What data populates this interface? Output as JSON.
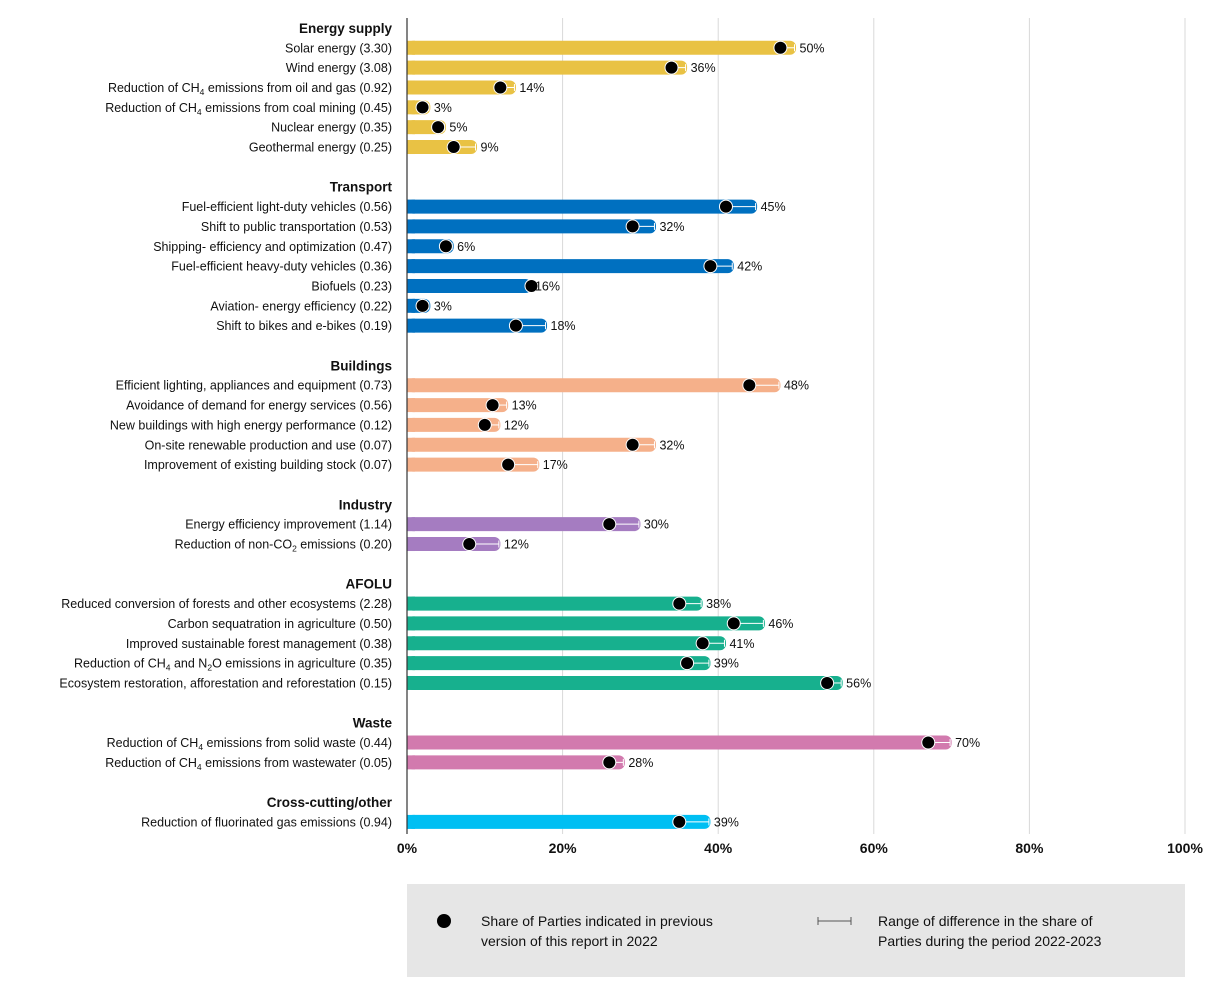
{
  "chart_data": {
    "type": "bar",
    "orientation": "horizontal",
    "xlim": [
      0,
      100
    ],
    "x_ticks": [
      "0%",
      "20%",
      "40%",
      "60%",
      "80%",
      "100%"
    ],
    "grid": true,
    "legend_placement": "bottom",
    "groups": [
      {
        "name": "Energy supply",
        "color": "#E9C244",
        "items": [
          {
            "label": "Solar energy (3.30)",
            "value": 50,
            "prev": 48,
            "value_label": "50%"
          },
          {
            "label": "Wind energy (3.08)",
            "value": 36,
            "prev": 34,
            "value_label": "36%"
          },
          {
            "label": "Reduction of CH₄ emissions from oil and gas (0.92)",
            "value": 14,
            "prev": 12,
            "value_label": "14%"
          },
          {
            "label": "Reduction of CH₄ emissions from coal mining (0.45)",
            "value": 3,
            "prev": 2,
            "value_label": "3%"
          },
          {
            "label": "Nuclear energy (0.35)",
            "value": 5,
            "prev": 4,
            "value_label": "5%"
          },
          {
            "label": "Geothermal energy (0.25)",
            "value": 9,
            "prev": 6,
            "value_label": "9%"
          }
        ]
      },
      {
        "name": "Transport",
        "color": "#0070C0",
        "items": [
          {
            "label": "Fuel-efficient light-duty vehicles (0.56)",
            "value": 45,
            "prev": 41,
            "value_label": "45%"
          },
          {
            "label": "Shift to public transportation (0.53)",
            "value": 32,
            "prev": 29,
            "value_label": "32%"
          },
          {
            "label": "Shipping- efficiency and optimization (0.47)",
            "value": 6,
            "prev": 5,
            "value_label": "6%"
          },
          {
            "label": "Fuel-efficient heavy-duty vehicles (0.36)",
            "value": 42,
            "prev": 39,
            "value_label": "42%"
          },
          {
            "label": "Biofuels (0.23)",
            "value": 16,
            "prev": 16,
            "value_label": "16%"
          },
          {
            "label": "Aviation- energy efficiency (0.22)",
            "value": 3,
            "prev": 2,
            "value_label": "3%"
          },
          {
            "label": "Shift to bikes and e-bikes (0.19)",
            "value": 18,
            "prev": 14,
            "value_label": "18%"
          }
        ]
      },
      {
        "name": "Buildings",
        "color": "#F5B08A",
        "items": [
          {
            "label": "Efficient lighting, appliances and equipment (0.73)",
            "value": 48,
            "prev": 44,
            "value_label": "48%"
          },
          {
            "label": "Avoidance of demand for energy services (0.56)",
            "value": 13,
            "prev": 11,
            "value_label": "13%"
          },
          {
            "label": "New buildings with high energy performance (0.12)",
            "value": 12,
            "prev": 10,
            "value_label": "12%"
          },
          {
            "label": "On-site renewable production and use (0.07)",
            "value": 32,
            "prev": 29,
            "value_label": "32%"
          },
          {
            "label": "Improvement of existing building stock (0.07)",
            "value": 17,
            "prev": 13,
            "value_label": "17%"
          }
        ]
      },
      {
        "name": "Industry",
        "color": "#A57CC1",
        "items": [
          {
            "label": "Energy efficiency improvement (1.14)",
            "value": 30,
            "prev": 26,
            "value_label": "30%"
          },
          {
            "label": "Reduction of non-CO₂ emissions (0.20)",
            "value": 12,
            "prev": 8,
            "value_label": "12%"
          }
        ]
      },
      {
        "name": "AFOLU",
        "color": "#17B08E",
        "items": [
          {
            "label": "Reduced conversion of forests and other ecosystems (2.28)",
            "value": 38,
            "prev": 35,
            "value_label": "38%"
          },
          {
            "label": "Carbon sequatration in agriculture (0.50)",
            "value": 46,
            "prev": 42,
            "value_label": "46%"
          },
          {
            "label": "Improved sustainable forest management (0.38)",
            "value": 41,
            "prev": 38,
            "value_label": "41%"
          },
          {
            "label": "Reduction of CH₄ and N₂O emissions in agriculture (0.35)",
            "value": 39,
            "prev": 36,
            "value_label": "39%"
          },
          {
            "label": "Ecosystem restoration, afforestation and reforestation (0.15)",
            "value": 56,
            "prev": 54,
            "value_label": "56%"
          }
        ]
      },
      {
        "name": "Waste",
        "color": "#D27AAE",
        "items": [
          {
            "label": "Reduction of CH₄ emissions from solid waste (0.44)",
            "value": 70,
            "prev": 67,
            "value_label": "70%"
          },
          {
            "label": "Reduction of CH₄ emissions from wastewater (0.05)",
            "value": 28,
            "prev": 26,
            "value_label": "28%"
          }
        ]
      },
      {
        "name": "Cross-cutting/other",
        "color": "#00BFF3",
        "items": [
          {
            "label": "Reduction of fluorinated gas emissions (0.94)",
            "value": 39,
            "prev": 35,
            "value_label": "39%"
          }
        ]
      }
    ],
    "legend": {
      "dot_label": [
        "Share of Parties indicated in previous",
        "version of this report in 2022"
      ],
      "range_label": [
        "Range of difference in the share of",
        "Parties during the period 2022-2023"
      ]
    }
  }
}
